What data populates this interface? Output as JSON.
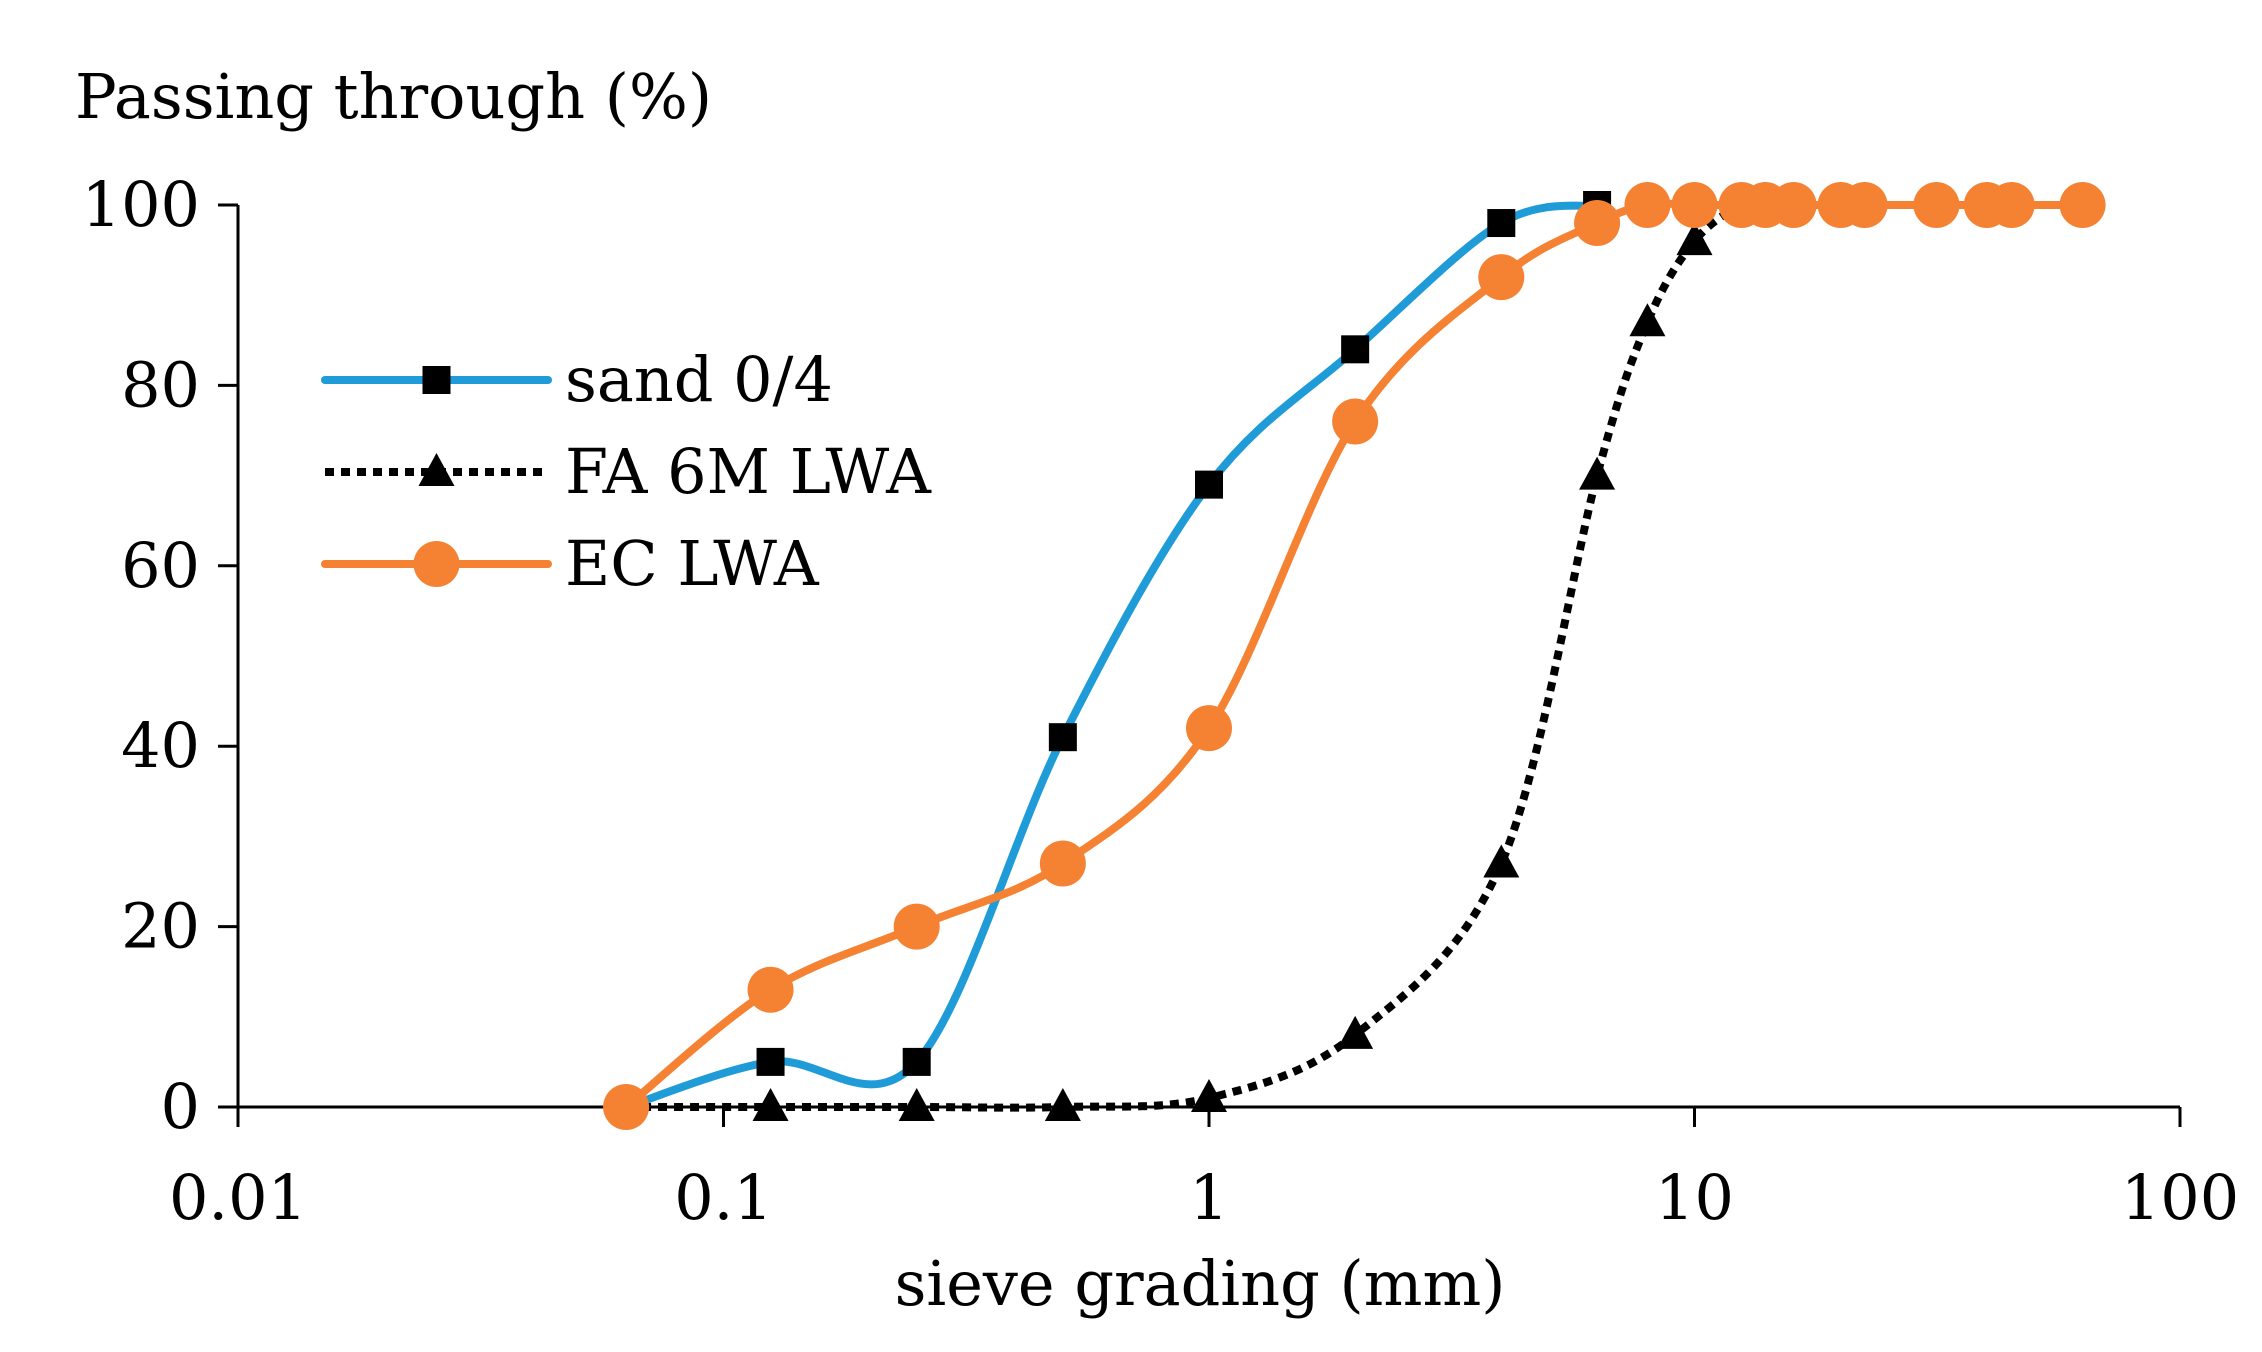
{
  "chart_data": {
    "type": "line",
    "title": "",
    "ylabel": "Passing through (%)",
    "xlabel": "sieve grading (mm)",
    "xscale": "log",
    "xlim": [
      0.01,
      100
    ],
    "ylim": [
      0,
      100
    ],
    "x_ticks": [
      0.01,
      0.1,
      1,
      10,
      100
    ],
    "x_tick_labels": [
      "0.01",
      "0.1",
      "1",
      "10",
      "100"
    ],
    "y_ticks": [
      0,
      20,
      40,
      60,
      80,
      100
    ],
    "y_tick_labels": [
      "0",
      "20",
      "40",
      "60",
      "80",
      "100"
    ],
    "legend_position": "upper-left",
    "series": [
      {
        "name": "sand 0/4",
        "color": "#1f9bd7",
        "line_style": "solid",
        "marker": "square",
        "marker_color": "#000000",
        "x": [
          0.063,
          0.125,
          0.25,
          0.5,
          1,
          2,
          4,
          6.3
        ],
        "y": [
          0,
          5,
          5,
          41,
          69,
          84,
          98,
          100
        ]
      },
      {
        "name": "FA 6M LWA",
        "color": "#000000",
        "line_style": "dotted",
        "marker": "triangle",
        "marker_color": "#000000",
        "x": [
          0.063,
          0.125,
          0.25,
          0.5,
          1,
          2,
          4,
          6.3,
          8,
          10,
          12.5,
          14,
          16,
          20,
          22.4,
          31.5,
          40,
          45,
          63
        ],
        "y": [
          0,
          0,
          0,
          0,
          1,
          8,
          27,
          70,
          87,
          96,
          100,
          100,
          100,
          100,
          100,
          100,
          100,
          100,
          100
        ]
      },
      {
        "name": "EC LWA",
        "color": "#f58232",
        "line_style": "solid",
        "marker": "circle",
        "marker_color": "#f58232",
        "x": [
          0.063,
          0.125,
          0.25,
          0.5,
          1,
          2,
          4,
          6.3,
          8,
          10,
          12.5,
          14,
          16,
          20,
          22.4,
          31.5,
          40,
          45,
          63
        ],
        "y": [
          0,
          13,
          20,
          27,
          42,
          76,
          92,
          98,
          100,
          100,
          100,
          100,
          100,
          100,
          100,
          100,
          100,
          100,
          100
        ]
      }
    ]
  }
}
